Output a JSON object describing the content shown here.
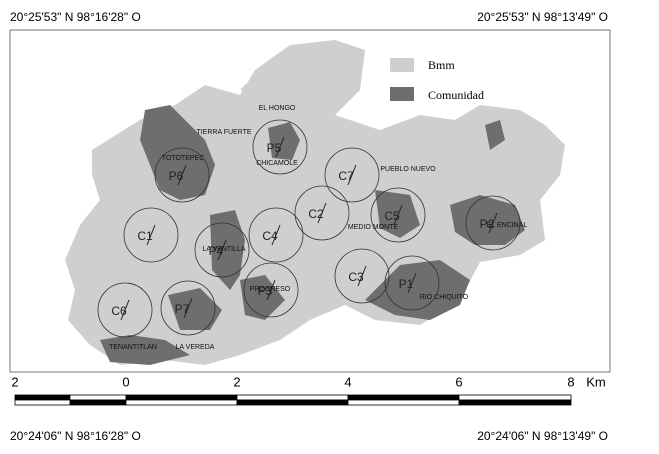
{
  "coordinates": {
    "top_left": "20°25'53\" N 98°16'28\" O",
    "top_right": "20°25'53\" N  98°13'49\" O",
    "bottom_left": "20°24'06\" N 98°16'28\" O",
    "bottom_right": "20°24'06\" N  98°13'49\" O"
  },
  "legend": [
    {
      "label": "Bmm"
    },
    {
      "label": "Comunidad"
    }
  ],
  "places": [
    "EL HONGO",
    "TIERRA FUERTE",
    "TOTOTEPEC",
    "CHICAMOLE",
    "PUEBLO NUEVO",
    "MEDIO MONTE",
    "EL ENCINAL",
    "LA VENTILLA",
    "PROGRESO",
    "RIO CHIQUITO",
    "TENANTITLAN",
    "LA VEREDA"
  ],
  "plots": [
    "C1",
    "P6",
    "P5",
    "C7",
    "C2",
    "C5",
    "P2",
    "P4",
    "C4",
    "P3",
    "C3",
    "P1",
    "P7",
    "C6"
  ],
  "scale": {
    "ticks": [
      "2",
      "0",
      "2",
      "4",
      "6",
      "8"
    ],
    "unit": "Km"
  }
}
